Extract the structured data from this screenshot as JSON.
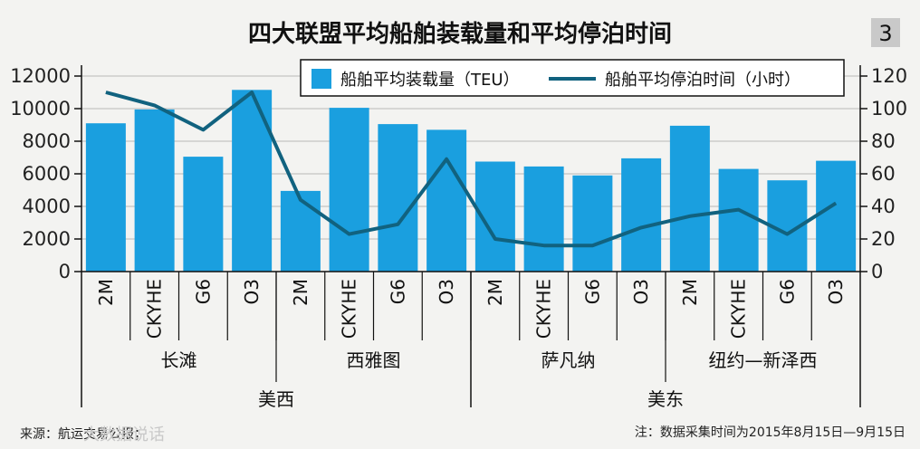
{
  "badge": "3",
  "source_note": "来源：航运交易公报；",
  "watermark": "大数据说话",
  "collection_note": "注：数据采集时间为2015年8月15日—9月15日",
  "chart_data": {
    "type": "bar+line",
    "title": "四大联盟平均船舶装载量和平均停泊时间",
    "legend": {
      "bar_label": "船舶平均装载量（TEU）",
      "line_label": "船舶平均停泊时间（小时）",
      "placement": "top-right"
    },
    "categories": [
      "2M",
      "CKYHE",
      "G6",
      "O3",
      "2M",
      "CKYHE",
      "G6",
      "O3",
      "2M",
      "CKYHE",
      "G6",
      "O3",
      "2M",
      "CKYHE",
      "G6",
      "O3"
    ],
    "ports": [
      {
        "name": "长滩",
        "start": 0,
        "count": 4
      },
      {
        "name": "西雅图",
        "start": 4,
        "count": 4
      },
      {
        "name": "萨凡纳",
        "start": 8,
        "count": 4
      },
      {
        "name": "纽约—新泽西",
        "start": 12,
        "count": 4
      }
    ],
    "regions": [
      {
        "name": "美西",
        "start": 0,
        "count": 8
      },
      {
        "name": "美东",
        "start": 8,
        "count": 8
      }
    ],
    "series": [
      {
        "name": "船舶平均装载量（TEU）",
        "kind": "bar",
        "axis": "left",
        "values": [
          9100,
          9950,
          7050,
          11150,
          4950,
          10050,
          9050,
          8700,
          6750,
          6450,
          5900,
          6950,
          8950,
          6300,
          5600,
          6800
        ]
      },
      {
        "name": "船舶平均停泊时间（小时）",
        "kind": "line",
        "axis": "right",
        "values": [
          110,
          102,
          87,
          110,
          44,
          23,
          29,
          69,
          20,
          16,
          16,
          27,
          34,
          38,
          23,
          42
        ]
      }
    ],
    "y_left": {
      "min": 0,
      "max": 12000,
      "ticks": [
        "0",
        "2000",
        "4000",
        "6000",
        "8000",
        "10000",
        "12000"
      ]
    },
    "y_right": {
      "min": 0,
      "max": 120,
      "ticks": [
        "0",
        "20",
        "40",
        "60",
        "80",
        "100",
        "120"
      ]
    },
    "colors": {
      "bar": "#1a9fdf",
      "line": "#11627f",
      "grid": "#c4c4c4"
    }
  }
}
